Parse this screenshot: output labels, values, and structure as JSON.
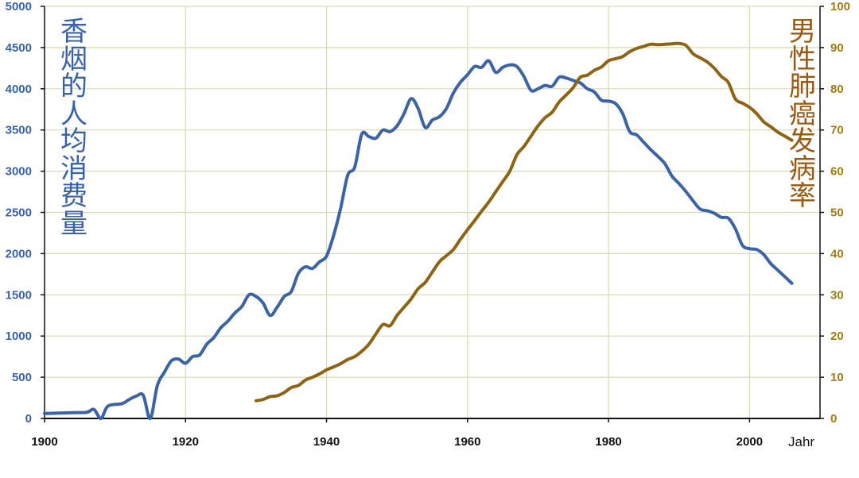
{
  "chart_data": {
    "type": "line",
    "xlabel": "Jahr",
    "ylabel_left": "香烟的人均消费量",
    "ylabel_right": "男性肺癌发病率",
    "xlim": [
      1900,
      2010
    ],
    "ylim_left": [
      0,
      5000
    ],
    "ylim_right": [
      0,
      100
    ],
    "x_ticks": [
      "1900",
      "1920",
      "1940",
      "1960",
      "1980",
      "2000"
    ],
    "y_ticks_left": [
      "0",
      "500",
      "1000",
      "1500",
      "2000",
      "2500",
      "3000",
      "3500",
      "4000",
      "4500",
      "5000"
    ],
    "y_ticks_right": [
      "0",
      "10",
      "20",
      "30",
      "40",
      "50",
      "60",
      "70",
      "80",
      "90",
      "100"
    ],
    "grid": true,
    "colors": {
      "cigarettes": "#3c64a5",
      "lung_cancer": "#8c6414"
    },
    "series": [
      {
        "axis": "left",
        "x": [
          1900,
          1902,
          1904,
          1906,
          1907,
          1908,
          1909,
          1911,
          1912,
          1913,
          1914,
          1915,
          1916,
          1917,
          1918,
          1919,
          1920,
          1921,
          1922,
          1923,
          1924,
          1925,
          1926,
          1927,
          1928,
          1929,
          1930,
          1931,
          1932,
          1933,
          1934,
          1935,
          1936,
          1937,
          1938,
          1939,
          1940,
          1941,
          1942,
          1943,
          1944,
          1945,
          1946,
          1947,
          1948,
          1949,
          1950,
          1951,
          1952,
          1953,
          1954,
          1955,
          1956,
          1957,
          1958,
          1959,
          1960,
          1961,
          1962,
          1963,
          1964,
          1965,
          1966,
          1967,
          1968,
          1969,
          1970,
          1971,
          1972,
          1973,
          1974,
          1975,
          1976,
          1977,
          1978,
          1979,
          1980,
          1981,
          1982,
          1983,
          1984,
          1985,
          1986,
          1987,
          1988,
          1989,
          1990,
          1991,
          1992,
          1993,
          1994,
          1995,
          1996,
          1997,
          1998,
          1999,
          2000,
          2001,
          2002,
          2003,
          2004,
          2005,
          2006
        ],
        "values": [
          60,
          65,
          70,
          75,
          110,
          0,
          150,
          180,
          230,
          270,
          280,
          0,
          400,
          560,
          700,
          720,
          670,
          750,
          770,
          900,
          980,
          1100,
          1180,
          1280,
          1360,
          1500,
          1480,
          1400,
          1250,
          1350,
          1480,
          1540,
          1760,
          1840,
          1820,
          1900,
          1970,
          2220,
          2550,
          2950,
          3050,
          3450,
          3420,
          3400,
          3500,
          3480,
          3550,
          3700,
          3880,
          3760,
          3530,
          3620,
          3660,
          3760,
          3950,
          4080,
          4170,
          4270,
          4260,
          4340,
          4200,
          4260,
          4290,
          4270,
          4150,
          3980,
          4000,
          4040,
          4030,
          4140,
          4130,
          4100,
          4070,
          4000,
          3960,
          3860,
          3850,
          3820,
          3700,
          3480,
          3440,
          3350,
          3260,
          3180,
          3090,
          2940,
          2850,
          2750,
          2640,
          2540,
          2520,
          2490,
          2440,
          2430,
          2300,
          2100,
          2060,
          2050,
          1990,
          1880,
          1800,
          1720,
          1640
        ]
      },
      {
        "axis": "right",
        "x": [
          1930,
          1931,
          1932,
          1933,
          1934,
          1935,
          1936,
          1937,
          1938,
          1939,
          1940,
          1941,
          1942,
          1943,
          1944,
          1945,
          1946,
          1947,
          1948,
          1949,
          1950,
          1951,
          1952,
          1953,
          1954,
          1955,
          1956,
          1957,
          1958,
          1959,
          1960,
          1961,
          1962,
          1963,
          1964,
          1965,
          1966,
          1967,
          1968,
          1969,
          1970,
          1971,
          1972,
          1973,
          1974,
          1975,
          1976,
          1977,
          1978,
          1979,
          1980,
          1981,
          1982,
          1983,
          1984,
          1985,
          1986,
          1987,
          1988,
          1989,
          1990,
          1991,
          1992,
          1993,
          1994,
          1995,
          1996,
          1997,
          1998,
          1999,
          2000,
          2001,
          2002,
          2003,
          2004,
          2005,
          2006
        ],
        "values": [
          4.3,
          4.6,
          5.3,
          5.5,
          6.3,
          7.5,
          8.0,
          9.3,
          10.0,
          10.8,
          11.8,
          12.5,
          13.3,
          14.3,
          15.0,
          16.3,
          18.0,
          20.5,
          22.8,
          22.5,
          25.0,
          27.0,
          29.0,
          31.5,
          33.0,
          35.5,
          38.0,
          39.5,
          41.0,
          43.5,
          45.8,
          48.0,
          50.3,
          52.5,
          55.0,
          57.5,
          60.0,
          64.0,
          66.0,
          68.5,
          71.0,
          73.0,
          74.3,
          76.8,
          78.5,
          80.3,
          82.8,
          83.3,
          84.5,
          85.3,
          86.8,
          87.3,
          87.8,
          89.0,
          89.8,
          90.3,
          90.8,
          90.7,
          90.8,
          90.9,
          91.0,
          90.5,
          88.5,
          87.5,
          86.5,
          85.0,
          83.0,
          81.5,
          77.5,
          76.5,
          75.5,
          74.0,
          72.0,
          70.8,
          69.5,
          68.5,
          67.5
        ]
      }
    ]
  }
}
